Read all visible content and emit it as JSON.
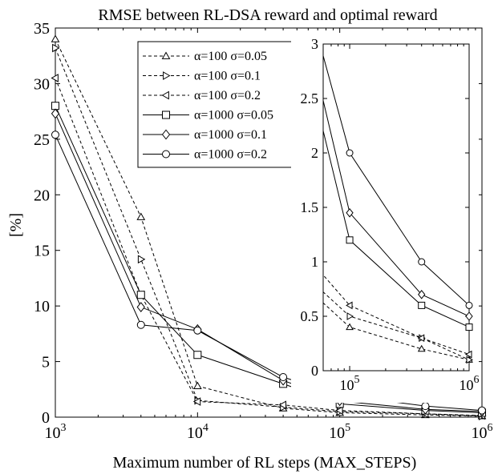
{
  "chart_data": {
    "type": "line",
    "title": "RMSE between RL-DSA reward and optimal reward",
    "xlabel": "Maximum number of RL steps (MAX_STEPS)",
    "ylabel": "[%]",
    "xscale": "log",
    "xlim": [
      1000,
      1000000
    ],
    "ylim": [
      0,
      35
    ],
    "x_ticks": [
      {
        "value": 1000,
        "base": "10",
        "exp": "3"
      },
      {
        "value": 10000,
        "base": "10",
        "exp": "4"
      },
      {
        "value": 100000,
        "base": "10",
        "exp": "5"
      },
      {
        "value": 1000000,
        "base": "10",
        "exp": "6"
      }
    ],
    "y_ticks": [
      "0",
      "5",
      "10",
      "15",
      "20",
      "25",
      "30",
      "35"
    ],
    "legend_position": "top-center",
    "x": [
      1000,
      4000,
      10000,
      40000,
      100000,
      400000,
      1000000
    ],
    "series": [
      {
        "name": "α=100 σ=0.05",
        "values": [
          34.0,
          18.0,
          2.8,
          0.8,
          0.4,
          0.2,
          0.1
        ],
        "marker": "triangle-up",
        "dash": true
      },
      {
        "name": "α=100 σ=0.1",
        "values": [
          33.2,
          14.2,
          1.5,
          0.9,
          0.5,
          0.3,
          0.1
        ],
        "marker": "triangle-right",
        "dash": true
      },
      {
        "name": "α=100 σ=0.2",
        "values": [
          30.5,
          11.0,
          1.4,
          1.1,
          0.6,
          0.3,
          0.15
        ],
        "marker": "triangle-left",
        "dash": true
      },
      {
        "name": "α=1000 σ=0.05",
        "values": [
          28.0,
          11.0,
          5.6,
          3.0,
          1.2,
          0.6,
          0.4
        ],
        "marker": "square",
        "dash": false
      },
      {
        "name": "α=1000 σ=0.1",
        "values": [
          27.3,
          9.9,
          7.9,
          3.3,
          1.45,
          0.7,
          0.5
        ],
        "marker": "diamond",
        "dash": false
      },
      {
        "name": "α=1000 σ=0.2",
        "values": [
          25.4,
          8.3,
          7.8,
          3.6,
          2.0,
          1.0,
          0.6
        ],
        "marker": "circle",
        "dash": false
      }
    ],
    "inset": {
      "xlim": [
        60000,
        1000000
      ],
      "ylim": [
        0,
        3
      ],
      "x_ticks": [
        {
          "value": 100000,
          "base": "10",
          "exp": "5"
        },
        {
          "value": 1000000,
          "base": "10",
          "exp": "6"
        }
      ],
      "y_ticks": [
        "0",
        "0.5",
        "1",
        "1.5",
        "2",
        "2.5",
        "3"
      ]
    }
  }
}
